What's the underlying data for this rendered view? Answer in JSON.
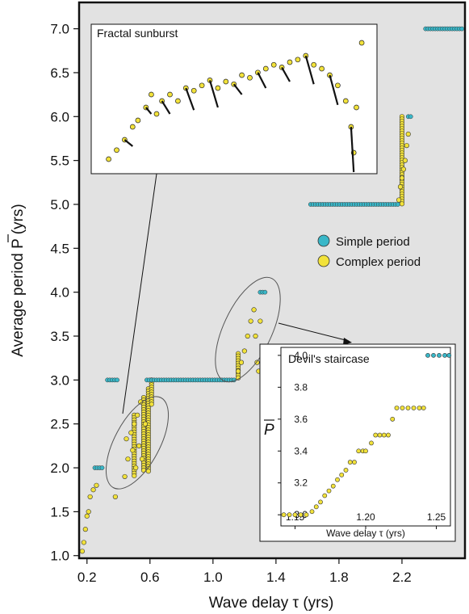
{
  "chart_data": [
    {
      "type": "scatter",
      "xlabel": "Wave delay τ (yrs)",
      "ylabel": "Average period P (yrs)",
      "xlim": [
        0.15,
        2.6
      ],
      "ylim": [
        0.97,
        7.3
      ],
      "xticks": [
        "0.2",
        "0.6",
        "1.0",
        "1.4",
        "1.8",
        "2.2"
      ],
      "xtick_values": [
        0.2,
        0.6,
        1.0,
        1.4,
        1.8,
        2.2
      ],
      "yticks": [
        "1.0",
        "1.5",
        "2.0",
        "2.5",
        "3.0",
        "3.5",
        "4.0",
        "4.5",
        "5.0",
        "5.5",
        "6.0",
        "6.5",
        "7.0"
      ],
      "ytick_values": [
        1.0,
        1.5,
        2.0,
        2.5,
        3.0,
        3.5,
        4.0,
        4.5,
        5.0,
        5.5,
        6.0,
        6.5,
        7.0
      ],
      "legend": {
        "placement": "right",
        "entries": [
          "Simple period",
          "Complex period"
        ]
      },
      "series": [
        {
          "name": "Simple period",
          "color": "#39b7c8",
          "plateaus": [
            {
              "y": 2.0,
              "x_start": 0.25,
              "x_end": 0.3
            },
            {
              "y": 3.0,
              "x_start": 0.33,
              "x_end": 0.4
            },
            {
              "y": 3.0,
              "x_start": 0.58,
              "x_end": 1.14
            },
            {
              "y": 4.0,
              "x_start": 1.3,
              "x_end": 1.34
            },
            {
              "y": 5.0,
              "x_start": 1.62,
              "x_end": 2.18
            },
            {
              "y": 6.0,
              "x_start": 2.24,
              "x_end": 2.27
            },
            {
              "y": 7.0,
              "x_start": 2.35,
              "x_end": 2.6
            }
          ]
        },
        {
          "name": "Complex period",
          "color": "#f2e23a",
          "points": [
            [
              0.17,
              1.05
            ],
            [
              0.18,
              1.15
            ],
            [
              0.19,
              1.3
            ],
            [
              0.2,
              1.45
            ],
            [
              0.21,
              1.5
            ],
            [
              0.22,
              1.67
            ],
            [
              0.24,
              1.75
            ],
            [
              0.26,
              1.8
            ],
            [
              0.38,
              1.67
            ],
            [
              0.44,
              1.9
            ],
            [
              0.45,
              2.33
            ],
            [
              0.46,
              2.1
            ],
            [
              0.48,
              2.4
            ],
            [
              0.49,
              2.2
            ],
            [
              0.5,
              2.5
            ],
            [
              0.51,
              2.0
            ],
            [
              0.52,
              2.6
            ],
            [
              0.53,
              2.25
            ],
            [
              0.54,
              2.75
            ],
            [
              0.55,
              2.1
            ],
            [
              0.57,
              2.5
            ],
            [
              1.16,
              3.1
            ],
            [
              1.18,
              3.2
            ],
            [
              1.2,
              3.33
            ],
            [
              1.22,
              3.5
            ],
            [
              1.24,
              3.67
            ],
            [
              1.26,
              3.8
            ],
            [
              1.27,
              3.5
            ],
            [
              1.28,
              3.2
            ],
            [
              1.29,
              3.1
            ],
            [
              1.3,
              3.67
            ],
            [
              2.18,
              5.05
            ],
            [
              2.19,
              5.2
            ],
            [
              2.2,
              5.3
            ],
            [
              2.21,
              5.4
            ],
            [
              2.22,
              5.5
            ],
            [
              2.23,
              5.67
            ],
            [
              2.24,
              5.8
            ]
          ],
          "vertical_segments": [
            {
              "x": 0.5,
              "y_start": 1.9,
              "y_end": 2.6
            },
            {
              "x": 0.56,
              "y_start": 1.95,
              "y_end": 2.8
            },
            {
              "x": 0.59,
              "y_start": 1.95,
              "y_end": 2.9
            },
            {
              "x": 0.61,
              "y_start": 2.7,
              "y_end": 3.0
            },
            {
              "x": 1.16,
              "y_start": 3.0,
              "y_end": 3.3
            },
            {
              "x": 2.2,
              "y_start": 5.0,
              "y_end": 6.0
            }
          ]
        }
      ]
    },
    {
      "type": "scatter",
      "title": "Fractal sunburst",
      "xlabel": "",
      "ylabel": "",
      "series": [
        {
          "name": "Complex period",
          "color": "#f2e23a",
          "points": [
            [
              0.02,
              0.05
            ],
            [
              0.05,
              0.12
            ],
            [
              0.08,
              0.2
            ],
            [
              0.11,
              0.3
            ],
            [
              0.13,
              0.35
            ],
            [
              0.16,
              0.45
            ],
            [
              0.18,
              0.55
            ],
            [
              0.2,
              0.4
            ],
            [
              0.22,
              0.5
            ],
            [
              0.25,
              0.55
            ],
            [
              0.28,
              0.5
            ],
            [
              0.31,
              0.6
            ],
            [
              0.34,
              0.58
            ],
            [
              0.37,
              0.62
            ],
            [
              0.4,
              0.66
            ],
            [
              0.43,
              0.6
            ],
            [
              0.46,
              0.65
            ],
            [
              0.49,
              0.63
            ],
            [
              0.52,
              0.7
            ],
            [
              0.55,
              0.68
            ],
            [
              0.58,
              0.72
            ],
            [
              0.61,
              0.75
            ],
            [
              0.64,
              0.78
            ],
            [
              0.67,
              0.76
            ],
            [
              0.7,
              0.8
            ],
            [
              0.73,
              0.82
            ],
            [
              0.76,
              0.85
            ],
            [
              0.79,
              0.78
            ],
            [
              0.82,
              0.75
            ],
            [
              0.85,
              0.7
            ],
            [
              0.88,
              0.62
            ],
            [
              0.91,
              0.5
            ],
            [
              0.93,
              0.3
            ],
            [
              0.94,
              0.1
            ],
            [
              0.95,
              0.45
            ],
            [
              0.97,
              0.95
            ]
          ]
        }
      ]
    },
    {
      "type": "scatter",
      "title": "Devil's staircase",
      "xlabel": "Wave delay τ (yrs)",
      "ylabel": "P",
      "xlim": [
        1.14,
        1.26
      ],
      "ylim": [
        2.93,
        4.05
      ],
      "xticks": [
        "1.15",
        "1.20",
        "1.25"
      ],
      "xtick_values": [
        1.15,
        1.2,
        1.25
      ],
      "yticks": [
        "3.0",
        "3.2",
        "3.4",
        "3.6",
        "3.8",
        "4.0"
      ],
      "ytick_values": [
        3.0,
        3.2,
        3.4,
        3.6,
        3.8,
        4.0
      ],
      "series": [
        {
          "name": "Complex period",
          "color": "#f2e23a",
          "points": [
            [
              1.142,
              3.0
            ],
            [
              1.146,
              3.0
            ],
            [
              1.15,
              3.0
            ],
            [
              1.154,
              3.0
            ],
            [
              1.158,
              3.0
            ],
            [
              1.162,
              3.02
            ],
            [
              1.165,
              3.05
            ],
            [
              1.168,
              3.08
            ],
            [
              1.171,
              3.12
            ],
            [
              1.174,
              3.15
            ],
            [
              1.177,
              3.18
            ],
            [
              1.18,
              3.22
            ],
            [
              1.183,
              3.25
            ],
            [
              1.186,
              3.28
            ],
            [
              1.189,
              3.33
            ],
            [
              1.192,
              3.33
            ],
            [
              1.195,
              3.4
            ],
            [
              1.198,
              3.4
            ],
            [
              1.2,
              3.4
            ],
            [
              1.204,
              3.45
            ],
            [
              1.207,
              3.5
            ],
            [
              1.21,
              3.5
            ],
            [
              1.213,
              3.5
            ],
            [
              1.216,
              3.5
            ],
            [
              1.219,
              3.6
            ],
            [
              1.222,
              3.67
            ],
            [
              1.226,
              3.67
            ],
            [
              1.23,
              3.67
            ],
            [
              1.234,
              3.67
            ],
            [
              1.238,
              3.67
            ],
            [
              1.241,
              3.67
            ]
          ]
        },
        {
          "name": "Simple period",
          "color": "#39b7c8",
          "points": [
            [
              1.244,
              4.0
            ],
            [
              1.248,
              4.0
            ],
            [
              1.252,
              4.0
            ],
            [
              1.256,
              4.0
            ],
            [
              1.259,
              4.0
            ]
          ]
        }
      ]
    }
  ]
}
